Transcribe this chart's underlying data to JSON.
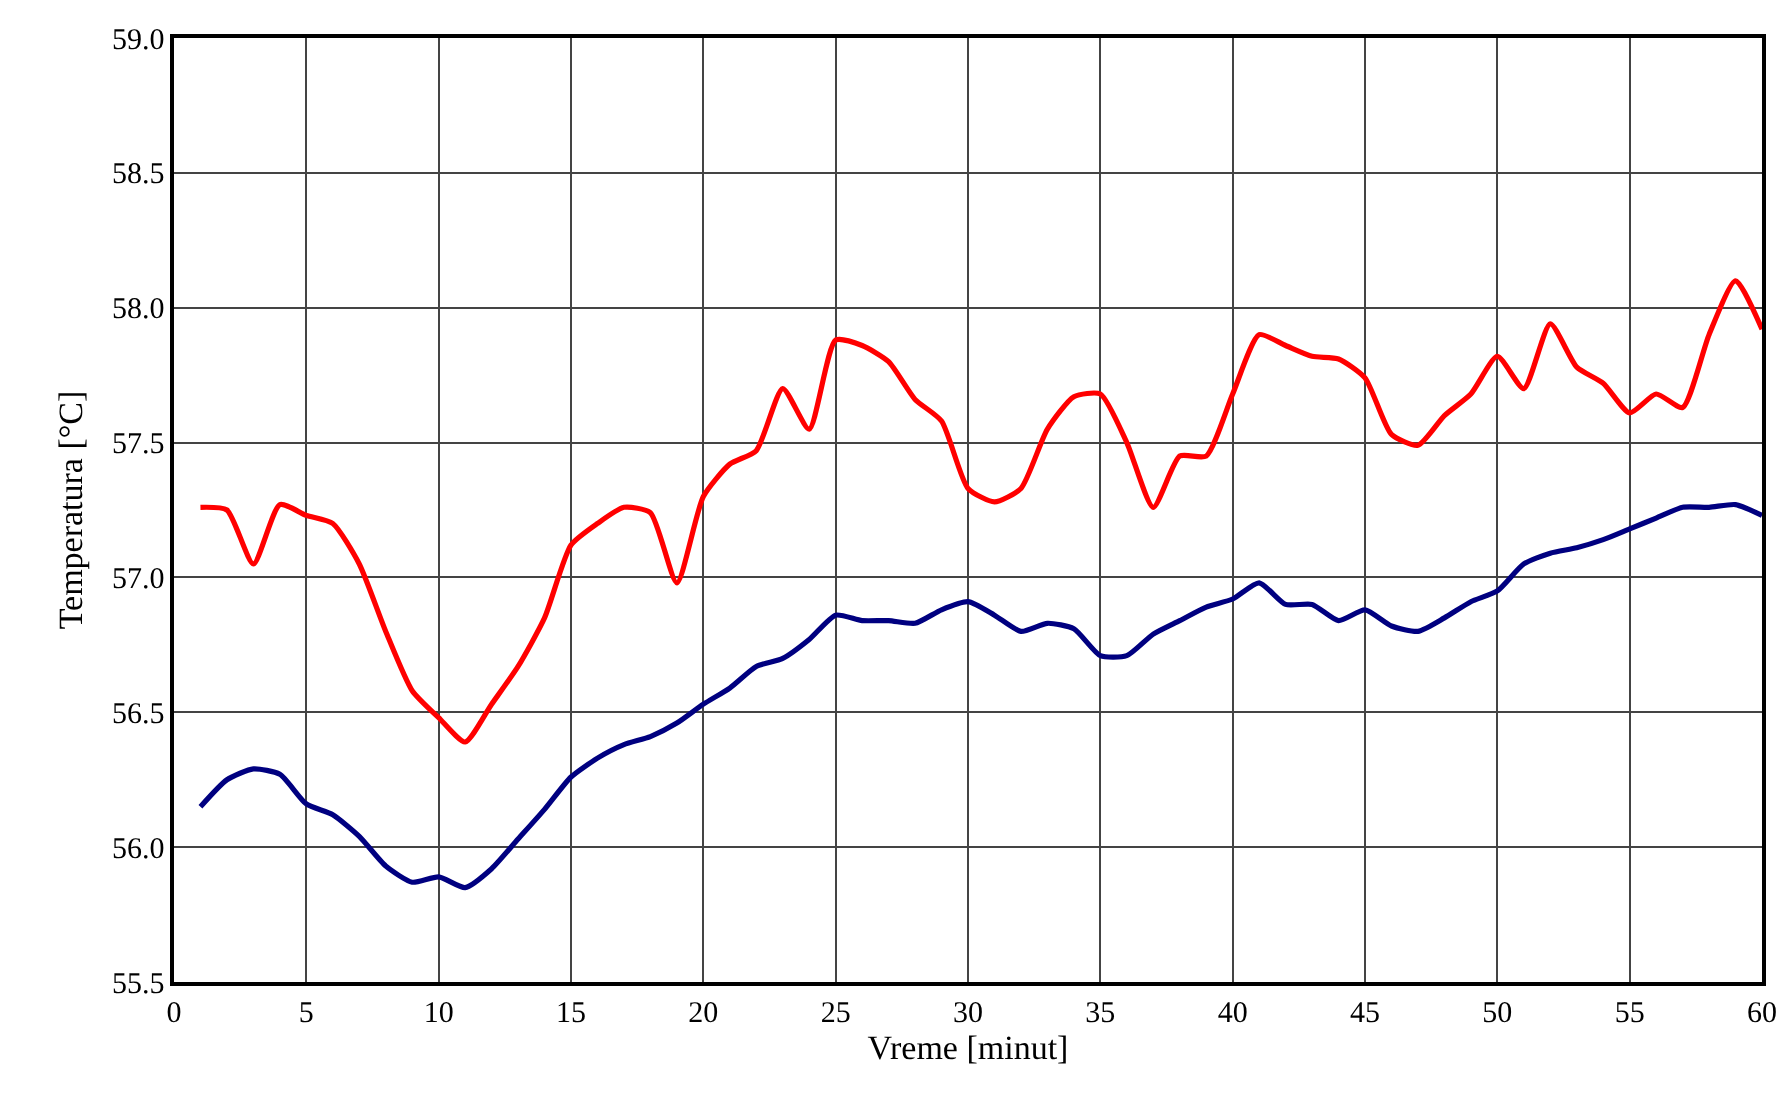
{
  "chart_data": {
    "type": "line",
    "xlabel": "Vreme [minut]",
    "ylabel": "Temperatura [°C]",
    "x": [
      1,
      2,
      3,
      4,
      5,
      6,
      7,
      8,
      9,
      10,
      11,
      12,
      13,
      14,
      15,
      16,
      17,
      18,
      19,
      20,
      21,
      22,
      23,
      24,
      25,
      26,
      27,
      28,
      29,
      30,
      31,
      32,
      33,
      34,
      35,
      36,
      37,
      38,
      39,
      40,
      41,
      42,
      43,
      44,
      45,
      46,
      47,
      48,
      49,
      50,
      51,
      52,
      53,
      54,
      55,
      56,
      57,
      58,
      59,
      60
    ],
    "series": [
      {
        "color": "#000080",
        "values": [
          56.15,
          56.25,
          56.29,
          56.27,
          56.16,
          56.12,
          56.04,
          55.93,
          55.87,
          55.89,
          55.85,
          55.92,
          56.03,
          56.14,
          56.26,
          56.33,
          56.38,
          56.41,
          56.46,
          56.53,
          56.59,
          56.67,
          56.7,
          56.77,
          56.86,
          56.84,
          56.84,
          56.83,
          56.88,
          56.91,
          56.86,
          56.8,
          56.83,
          56.81,
          56.71,
          56.71,
          56.79,
          56.84,
          56.89,
          56.92,
          56.98,
          56.9,
          56.9,
          56.84,
          56.88,
          56.82,
          56.8,
          56.85,
          56.91,
          56.95,
          57.05,
          57.09,
          57.11,
          57.14,
          57.18,
          57.22,
          57.26,
          57.26,
          57.27,
          57.23
        ]
      },
      {
        "color": "#ff0000",
        "values": [
          57.26,
          57.25,
          57.05,
          57.27,
          57.23,
          57.2,
          57.05,
          56.8,
          56.58,
          56.48,
          56.39,
          56.53,
          56.67,
          56.85,
          57.12,
          57.2,
          57.26,
          57.24,
          56.98,
          57.3,
          57.42,
          57.47,
          57.7,
          57.55,
          57.88,
          57.86,
          57.8,
          57.66,
          57.58,
          57.33,
          57.28,
          57.33,
          57.55,
          57.67,
          57.68,
          57.5,
          57.26,
          57.45,
          57.45,
          57.68,
          57.9,
          57.86,
          57.82,
          57.81,
          57.74,
          57.53,
          57.49,
          57.6,
          57.68,
          57.82,
          57.7,
          57.94,
          57.78,
          57.72,
          57.61,
          57.68,
          57.63,
          57.9,
          58.1,
          57.92
        ]
      }
    ],
    "xlim": [
      0,
      60
    ],
    "xticks": [
      0,
      5,
      10,
      15,
      20,
      25,
      30,
      35,
      40,
      45,
      50,
      55,
      60
    ],
    "ylim": [
      55.5,
      59
    ],
    "yticks": [
      {
        "value": 55.5,
        "label": "55.5"
      },
      {
        "value": 56,
        "label": "56.0"
      },
      {
        "value": 56.5,
        "label": "56.5"
      },
      {
        "value": 57,
        "label": "57.0"
      },
      {
        "value": 57.5,
        "label": "57.5"
      },
      {
        "value": 58,
        "label": "58.0"
      },
      {
        "value": 58.5,
        "label": "58.5"
      },
      {
        "value": 59,
        "label": "59.0"
      }
    ],
    "grid": true,
    "line_style": "solid",
    "marker": "none"
  }
}
